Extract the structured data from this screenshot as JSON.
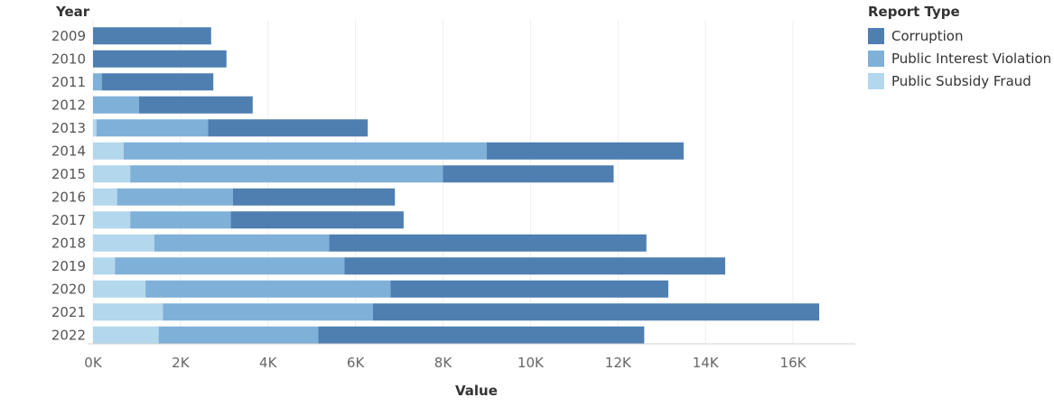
{
  "chart_data": {
    "type": "bar",
    "orientation": "horizontal",
    "stacked": true,
    "row_header": "Year",
    "categories": [
      "2009",
      "2010",
      "2011",
      "2012",
      "2013",
      "2014",
      "2015",
      "2016",
      "2017",
      "2018",
      "2019",
      "2020",
      "2021",
      "2022"
    ],
    "series": [
      {
        "name": "Public Subsidy Fraud",
        "color": "#b3d7ed",
        "values": [
          0,
          0,
          0,
          0,
          80,
          700,
          850,
          550,
          850,
          1400,
          500,
          1200,
          1600,
          1500
        ]
      },
      {
        "name": "Public Interest Violation",
        "color": "#7fb0d8",
        "values": [
          0,
          0,
          200,
          1050,
          2550,
          8300,
          7150,
          2650,
          2300,
          4000,
          5250,
          5600,
          4800,
          3650
        ]
      },
      {
        "name": "Corruption",
        "color": "#4e7fb0",
        "values": [
          2700,
          3050,
          2550,
          2600,
          3650,
          4500,
          3900,
          3700,
          3950,
          7250,
          8700,
          6350,
          10200,
          7450
        ]
      }
    ],
    "xlabel": "Value",
    "ylabel": "",
    "xlim": [
      0,
      17500
    ],
    "xticks": [
      0,
      2000,
      4000,
      6000,
      8000,
      10000,
      12000,
      14000,
      16000
    ],
    "xtick_labels": [
      "0K",
      "2K",
      "4K",
      "6K",
      "8K",
      "10K",
      "12K",
      "14K",
      "16K"
    ],
    "grid": "vertical",
    "legend_title": "Report Type",
    "legend_order": [
      "Corruption",
      "Public Interest Violation",
      "Public Subsidy Fraud"
    ],
    "legend_position": "top-right"
  }
}
